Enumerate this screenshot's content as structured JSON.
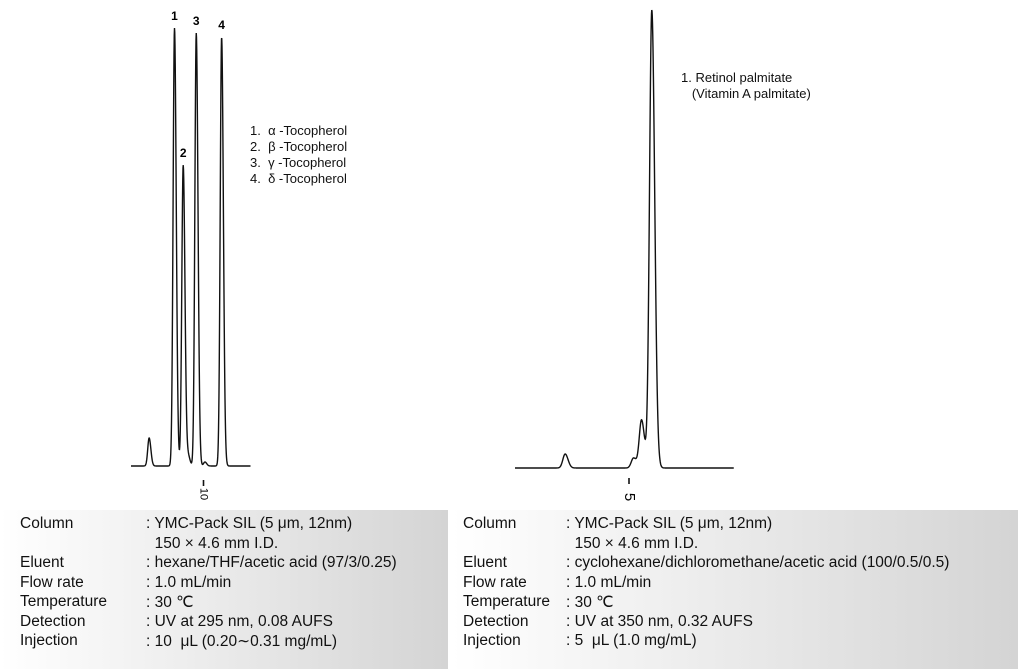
{
  "chart_data": [
    {
      "type": "line",
      "xlabel": "",
      "ylabel": "",
      "x_ticks": [
        {
          "value": 10,
          "label": "10"
        }
      ],
      "xlim": [
        0,
        16.5
      ],
      "grid": false,
      "peaks": [
        {
          "t": 2.5,
          "height": 28,
          "label": ""
        },
        {
          "t": 6.0,
          "height": 438,
          "label": "1"
        },
        {
          "t": 7.2,
          "height": 301,
          "label": "2"
        },
        {
          "t": 7.9,
          "height": 10,
          "label": ""
        },
        {
          "t": 9.0,
          "height": 433,
          "label": "3"
        },
        {
          "t": 10.2,
          "height": 4,
          "label": ""
        },
        {
          "t": 12.5,
          "height": 429,
          "label": "4"
        }
      ],
      "legend": [
        "1.  α -Tocopherol",
        "2.  β -Tocopherol",
        "3.  γ -Tocopherol",
        "4.  δ -Tocopherol"
      ]
    },
    {
      "type": "line",
      "xlabel": "",
      "ylabel": "",
      "x_ticks": [
        {
          "value": 5,
          "label": "5"
        }
      ],
      "xlim": [
        0,
        9.6
      ],
      "grid": false,
      "peaks": [
        {
          "t": 2.2,
          "height": 14,
          "label": ""
        },
        {
          "t": 5.2,
          "height": 10,
          "label": ""
        },
        {
          "t": 5.55,
          "height": 48,
          "label": ""
        },
        {
          "t": 6.0,
          "height": 458,
          "label": ""
        }
      ],
      "legend": [
        "1. Retinol palmitate",
        "   (Vitamin A palmitate)"
      ]
    }
  ],
  "conditions": [
    {
      "rows": [
        {
          "label": "Column",
          "value": ": YMC-Pack SIL (5 μm, 12nm)"
        },
        {
          "label": "",
          "value": "  150 × 4.6 mm I.D."
        },
        {
          "label": "Eluent",
          "value": ": hexane/THF/acetic acid (97/3/0.25)"
        },
        {
          "label": "Flow rate",
          "value": ": 1.0 mL/min"
        },
        {
          "label": "Temperature",
          "value": ": 30 ℃"
        },
        {
          "label": "Detection",
          "value": ": UV at 295 nm, 0.08 AUFS"
        },
        {
          "label": "Injection",
          "value": ": 10  μL (0.20∼0.31 mg/mL)"
        }
      ]
    },
    {
      "rows": [
        {
          "label": "Column",
          "value": ": YMC-Pack SIL (5 μm, 12nm)"
        },
        {
          "label": "",
          "value": "  150 × 4.6 mm I.D."
        },
        {
          "label": "Eluent",
          "value": ": cyclohexane/dichloromethane/acetic acid (100/0.5/0.5)"
        },
        {
          "label": "Flow rate",
          "value": ": 1.0 mL/min"
        },
        {
          "label": "Temperature",
          "value": ": 30 ℃"
        },
        {
          "label": "Detection",
          "value": ": UV at 350 nm, 0.32 AUFS"
        },
        {
          "label": "Injection",
          "value": ": 5  μL (1.0 mg/mL)"
        }
      ]
    }
  ]
}
